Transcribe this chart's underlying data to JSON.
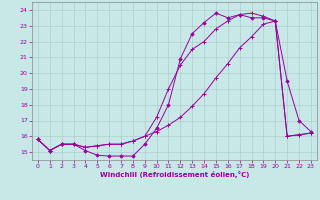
{
  "xlabel": "Windchill (Refroidissement éolien,°C)",
  "line_color": "#990099",
  "bg_color": "#c8e8e8",
  "grid_color": "#b0c8c8",
  "xlim": [
    -0.5,
    23.5
  ],
  "ylim": [
    14.5,
    24.5
  ],
  "xticks": [
    0,
    1,
    2,
    3,
    4,
    5,
    6,
    7,
    8,
    9,
    10,
    11,
    12,
    13,
    14,
    15,
    16,
    17,
    18,
    19,
    20,
    21,
    22,
    23
  ],
  "yticks": [
    15,
    16,
    17,
    18,
    19,
    20,
    21,
    22,
    23,
    24
  ],
  "line1_x": [
    0,
    1,
    2,
    3,
    4,
    5,
    6,
    7,
    8,
    9,
    10,
    11,
    12,
    13,
    14,
    15,
    16,
    17,
    18,
    19,
    20,
    21,
    22,
    23
  ],
  "line1_y": [
    15.8,
    15.1,
    15.5,
    15.5,
    15.1,
    14.8,
    14.75,
    14.75,
    14.75,
    15.5,
    16.5,
    18.0,
    20.9,
    22.5,
    23.2,
    23.8,
    23.5,
    23.7,
    23.5,
    23.5,
    23.3,
    19.5,
    17.0,
    16.3
  ],
  "line2_x": [
    0,
    1,
    2,
    3,
    4,
    5,
    6,
    7,
    8,
    9,
    10,
    11,
    12,
    13,
    14,
    15,
    16,
    17,
    18,
    19,
    20,
    21,
    22,
    23
  ],
  "line2_y": [
    15.8,
    15.1,
    15.5,
    15.5,
    15.3,
    15.4,
    15.5,
    15.5,
    15.7,
    16.0,
    17.2,
    19.0,
    20.5,
    21.5,
    22.0,
    22.8,
    23.3,
    23.7,
    23.8,
    23.6,
    23.3,
    16.0,
    16.1,
    16.2
  ],
  "line3_x": [
    0,
    1,
    2,
    3,
    4,
    5,
    6,
    7,
    8,
    9,
    10,
    11,
    12,
    13,
    14,
    15,
    16,
    17,
    18,
    19,
    20,
    21,
    22,
    23
  ],
  "line3_y": [
    15.8,
    15.1,
    15.5,
    15.5,
    15.3,
    15.4,
    15.5,
    15.5,
    15.7,
    16.0,
    16.3,
    16.7,
    17.2,
    17.9,
    18.7,
    19.7,
    20.6,
    21.6,
    22.3,
    23.1,
    23.3,
    16.0,
    16.1,
    16.2
  ]
}
